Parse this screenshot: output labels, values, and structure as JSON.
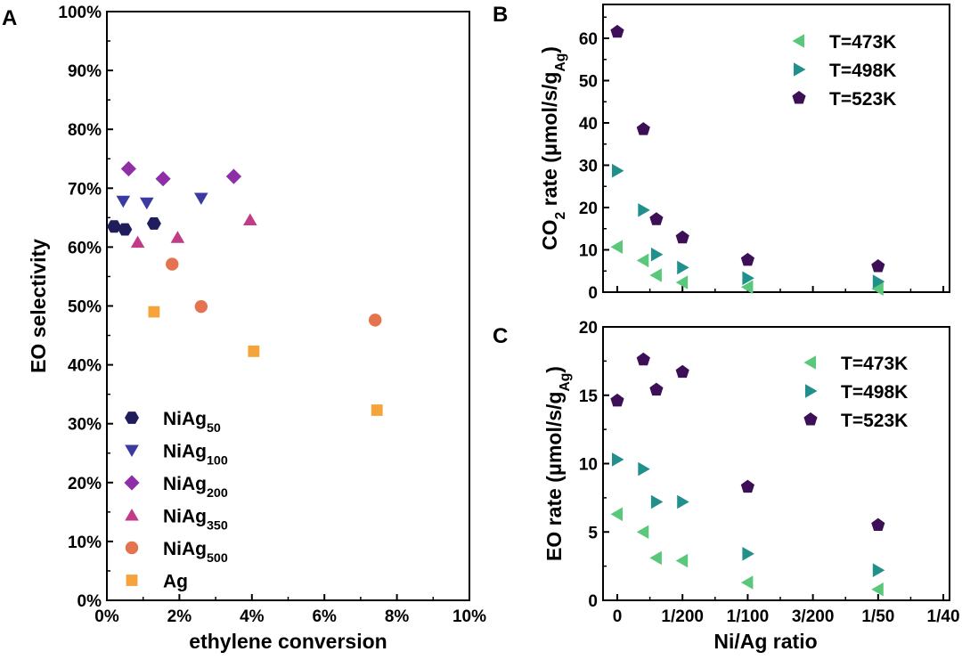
{
  "chart_data": [
    {
      "panel": "A",
      "type": "scatter",
      "xlabel": "ethylene conversion",
      "ylabel": "EO selectivity",
      "xlim": [
        0,
        10
      ],
      "ylim": [
        0,
        100
      ],
      "x_ticks": [
        "0%",
        "2%",
        "4%",
        "6%",
        "8%",
        "10%"
      ],
      "y_ticks": [
        "0%",
        "10%",
        "20%",
        "30%",
        "40%",
        "50%",
        "60%",
        "70%",
        "80%",
        "90%",
        "100%"
      ],
      "legend_position": "bottom-left",
      "series": [
        {
          "name": "NiAg",
          "sub": "50",
          "marker": "hexagon",
          "color": "#1f1d5c",
          "x": [
            0.2,
            0.5,
            1.3
          ],
          "y": [
            63.5,
            63.0,
            64.0
          ]
        },
        {
          "name": "NiAg",
          "sub": "100",
          "marker": "triangle-down",
          "color": "#3a3aa0",
          "x": [
            0.45,
            1.1,
            2.6
          ],
          "y": [
            67.8,
            67.5,
            68.3
          ]
        },
        {
          "name": "NiAg",
          "sub": "200",
          "marker": "diamond",
          "color": "#8e2fa8",
          "x": [
            0.6,
            1.55,
            3.5
          ],
          "y": [
            73.3,
            71.6,
            72.0
          ]
        },
        {
          "name": "NiAg",
          "sub": "350",
          "marker": "triangle-up",
          "color": "#c13b86",
          "x": [
            0.85,
            1.95,
            3.95
          ],
          "y": [
            60.8,
            61.6,
            64.6
          ]
        },
        {
          "name": "NiAg",
          "sub": "500",
          "marker": "circle",
          "color": "#e4734f",
          "x": [
            1.8,
            2.6,
            7.4
          ],
          "y": [
            57.1,
            49.9,
            47.6
          ]
        },
        {
          "name": "Ag",
          "sub": "",
          "marker": "square",
          "color": "#f5a33b",
          "x": [
            1.3,
            4.05,
            7.45
          ],
          "y": [
            49.0,
            42.3,
            32.3
          ]
        }
      ]
    },
    {
      "panel": "B",
      "type": "scatter",
      "xlabel": "",
      "ylabel": "CO",
      "ylabel_sub": "2",
      "ylabel_rest": " rate (μmol/s/g",
      "ylabel_sub2": "Ag",
      "ylabel_close": ")",
      "xlim": [
        0,
        0.025
      ],
      "ylim": [
        0,
        68
      ],
      "y_ticks": [
        "0",
        "10",
        "20",
        "30",
        "40",
        "50",
        "60"
      ],
      "legend_position": "top-right",
      "series": [
        {
          "name": "T=473K",
          "marker": "triangle-left",
          "color": "#5ac87b",
          "x": [
            0,
            0.002,
            0.003,
            0.005,
            0.01,
            0.02
          ],
          "y": [
            10.7,
            7.5,
            4.0,
            2.3,
            1.2,
            0.8
          ]
        },
        {
          "name": "T=498K",
          "marker": "triangle-right",
          "color": "#21908d",
          "x": [
            0,
            0.002,
            0.003,
            0.005,
            0.01,
            0.02
          ],
          "y": [
            28.7,
            19.4,
            8.9,
            5.8,
            3.3,
            2.5
          ]
        },
        {
          "name": "T=523K",
          "marker": "pentagon",
          "color": "#3d0f57",
          "x": [
            0,
            0.002,
            0.003,
            0.005,
            0.01,
            0.02
          ],
          "y": [
            61.5,
            38.5,
            17.2,
            12.9,
            7.6,
            6.1
          ]
        }
      ]
    },
    {
      "panel": "C",
      "type": "scatter",
      "xlabel": "Ni/Ag ratio",
      "ylabel": "EO rate (μmol/s/g",
      "ylabel_sub": "Ag",
      "ylabel_close": ")",
      "xlim": [
        0,
        0.025
      ],
      "ylim": [
        0,
        20
      ],
      "x_ticks": [
        "0",
        "1/200",
        "1/100",
        "3/200",
        "1/50",
        "1/40"
      ],
      "y_ticks": [
        "0",
        "5",
        "10",
        "15",
        "20"
      ],
      "legend_position": "top-right",
      "series": [
        {
          "name": "T=473K",
          "marker": "triangle-left",
          "color": "#5ac87b",
          "x": [
            0,
            0.002,
            0.003,
            0.005,
            0.01,
            0.02
          ],
          "y": [
            6.3,
            5.0,
            3.1,
            2.9,
            1.3,
            0.8
          ]
        },
        {
          "name": "T=498K",
          "marker": "triangle-right",
          "color": "#21908d",
          "x": [
            0,
            0.002,
            0.003,
            0.005,
            0.01,
            0.02
          ],
          "y": [
            10.3,
            9.6,
            7.2,
            7.2,
            3.4,
            2.2
          ]
        },
        {
          "name": "T=523K",
          "marker": "pentagon",
          "color": "#3d0f57",
          "x": [
            0,
            0.002,
            0.003,
            0.005,
            0.01,
            0.02
          ],
          "y": [
            14.6,
            17.6,
            15.4,
            16.7,
            8.3,
            5.5
          ]
        }
      ]
    }
  ]
}
